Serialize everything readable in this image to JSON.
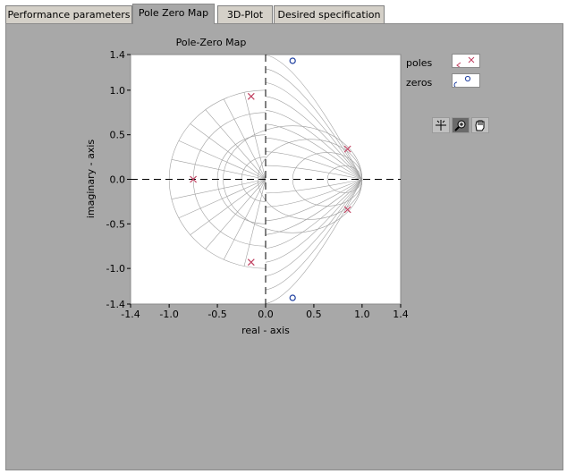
{
  "tabs": [
    {
      "label": "Performance parameters",
      "active": false
    },
    {
      "label": "Pole Zero Map",
      "active": true
    },
    {
      "label": "3D-Plot",
      "active": false
    },
    {
      "label": "Desired specification",
      "active": false
    }
  ],
  "chart_data": {
    "type": "scatter",
    "title": "Pole-Zero Map",
    "xlabel": "real - axis",
    "ylabel": "imaginary - axis",
    "xlim": [
      -1.4,
      1.4
    ],
    "ylim": [
      -1.4,
      1.4
    ],
    "xticks": [
      "-1.4",
      "-1.0",
      "-0.5",
      "0.0",
      "0.5",
      "1.0",
      "1.4"
    ],
    "xtick_values": [
      -1.4,
      -1.0,
      -0.5,
      0.0,
      0.5,
      1.0,
      1.4
    ],
    "yticks": [
      "1.4",
      "1.0",
      "0.5",
      "0.0",
      "-0.5",
      "-1.0",
      "-1.4"
    ],
    "ytick_values": [
      1.4,
      1.0,
      0.5,
      0.0,
      -0.5,
      -1.0,
      -1.4
    ],
    "grid": "s-plane damping/frequency overlay",
    "series": [
      {
        "name": "poles",
        "marker": "x",
        "color": "#c04060",
        "points": [
          [
            -0.75,
            0.0
          ],
          [
            -0.15,
            0.93
          ],
          [
            -0.15,
            -0.93
          ],
          [
            0.85,
            0.34
          ],
          [
            0.85,
            -0.34
          ]
        ]
      },
      {
        "name": "zeros",
        "marker": "o",
        "color": "#2040a0",
        "points": [
          [
            0.28,
            1.33
          ],
          [
            0.28,
            -1.33
          ]
        ]
      }
    ]
  },
  "legend": {
    "poles": "poles",
    "zeros": "zeros"
  },
  "toolbar": {
    "tools": [
      "crosshair-cursor",
      "zoom-tool",
      "pan-hand"
    ]
  }
}
